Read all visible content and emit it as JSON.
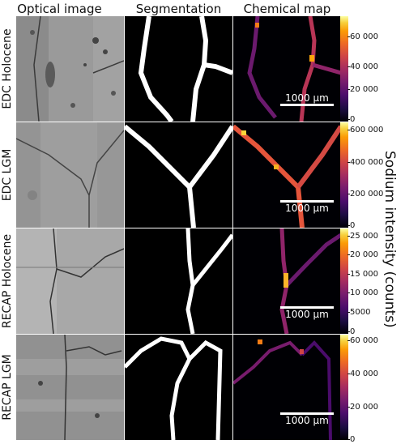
{
  "columns": {
    "optical": "Optical image",
    "segmentation": "Segmentation",
    "chemical": "Chemical map"
  },
  "rows": [
    {
      "label": "EDC Holocene",
      "ticks": [
        "60 000",
        "40 000",
        "20 000",
        "0"
      ],
      "cbar_max": 70000
    },
    {
      "label": "EDC LGM",
      "ticks": [
        "600 000",
        "400 000",
        "200 000",
        "0"
      ],
      "cbar_max": 650000
    },
    {
      "label": "RECAP Holocene",
      "ticks": [
        "25 000",
        "20 000",
        "15 000",
        "10 000",
        "5000",
        "0"
      ],
      "cbar_max": 27500
    },
    {
      "label": "RECAP  LGM",
      "ticks": [
        "60 000",
        "40 000",
        "20 000",
        "0"
      ],
      "cbar_max": 63000
    }
  ],
  "scalebar": "1000 µm",
  "colorbar_label": "Sodium intensity (counts)",
  "colormap": "inferno"
}
